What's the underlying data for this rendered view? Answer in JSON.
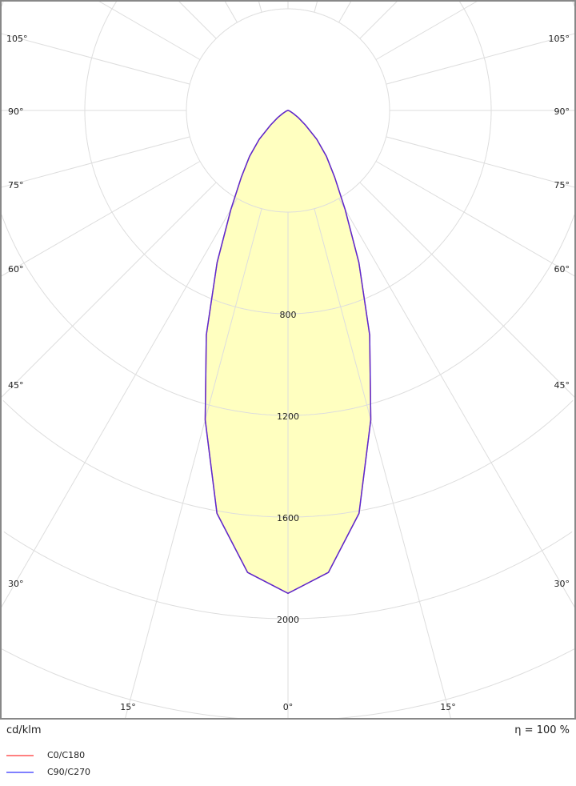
{
  "chart_data": {
    "type": "polar-line",
    "unit_label": "cd/klm",
    "efficiency_label": "η = 100 %",
    "radial_ticks": [
      400,
      800,
      1200,
      1600,
      2000,
      2400
    ],
    "radial_tick_labels": [
      "800",
      "1200",
      "1600",
      "2000"
    ],
    "angle_labels_left": [
      "105°",
      "90°",
      "75°",
      "60°",
      "45°",
      "30°",
      "15°"
    ],
    "angle_labels_right": [
      "105°",
      "90°",
      "75°",
      "60°",
      "45°",
      "30°",
      "15°"
    ],
    "angle_label_bottom": "0°",
    "grid": true,
    "angles_deg": [
      0,
      5,
      10,
      15,
      20,
      25,
      30,
      35,
      40,
      45,
      50,
      55,
      60,
      70,
      80,
      90
    ],
    "series": [
      {
        "name": "C0/C180",
        "color": "#ff8080",
        "values": [
          1900,
          1825,
          1610,
          1260,
          940,
          660,
          450,
          320,
          235,
          160,
          90,
          50,
          25,
          8,
          2,
          0
        ]
      },
      {
        "name": "C90/C270",
        "color": "#8080ff",
        "values": [
          1900,
          1825,
          1610,
          1260,
          940,
          660,
          450,
          320,
          235,
          160,
          90,
          50,
          25,
          8,
          2,
          0
        ]
      }
    ],
    "fill_color": "#ffffc0",
    "curve_color": "#5a2ad0",
    "legend_position": "bottom-left"
  }
}
